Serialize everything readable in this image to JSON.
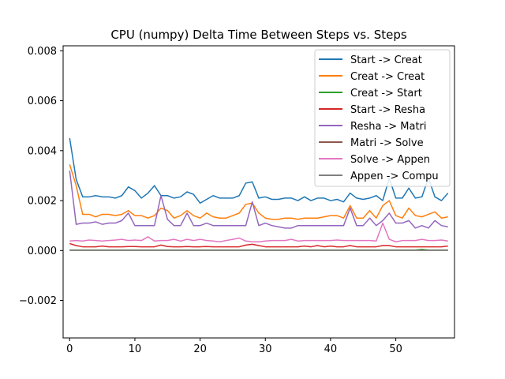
{
  "chart_data": {
    "type": "line",
    "title": "CPU (numpy) Delta Time Between Steps vs. Steps",
    "xlabel": "",
    "ylabel": "",
    "xlim": [
      -1,
      59
    ],
    "ylim": [
      -0.0035,
      0.0082
    ],
    "xticks": [
      0,
      10,
      20,
      30,
      40,
      50
    ],
    "yticks": [
      -0.002,
      0.0,
      0.002,
      0.004,
      0.006,
      0.008
    ],
    "ytick_labels": [
      "−0.002",
      "0.000",
      "0.002",
      "0.004",
      "0.006",
      "0.008"
    ],
    "grid": false,
    "legend_position": "top-right",
    "series": [
      {
        "name": "Start -> Creat",
        "color": "#1f77b4",
        "values": [
          0.0045,
          0.00285,
          0.00215,
          0.00215,
          0.0022,
          0.00215,
          0.00215,
          0.0021,
          0.0022,
          0.00255,
          0.0024,
          0.0021,
          0.0023,
          0.0026,
          0.0022,
          0.0022,
          0.0021,
          0.00215,
          0.00235,
          0.00225,
          0.0019,
          0.00205,
          0.0022,
          0.0021,
          0.0021,
          0.0021,
          0.0022,
          0.0027,
          0.00275,
          0.0021,
          0.00215,
          0.00205,
          0.00205,
          0.0021,
          0.0021,
          0.002,
          0.00215,
          0.002,
          0.0021,
          0.0021,
          0.002,
          0.00205,
          0.00195,
          0.0023,
          0.0021,
          0.00205,
          0.0021,
          0.0022,
          0.002,
          0.0029,
          0.0021,
          0.0021,
          0.0025,
          0.0021,
          0.00215,
          0.0029,
          0.00215,
          0.002,
          0.0023
        ]
      },
      {
        "name": "Creat -> Creat",
        "color": "#ff7f0e",
        "values": [
          0.00345,
          0.0026,
          0.00145,
          0.00145,
          0.00135,
          0.00145,
          0.00145,
          0.0014,
          0.00145,
          0.0016,
          0.0014,
          0.0014,
          0.0013,
          0.0014,
          0.0017,
          0.0016,
          0.0013,
          0.0014,
          0.0016,
          0.0014,
          0.0013,
          0.0015,
          0.00135,
          0.0013,
          0.0013,
          0.0014,
          0.0015,
          0.00185,
          0.0019,
          0.0015,
          0.0013,
          0.00125,
          0.00125,
          0.0013,
          0.0013,
          0.00125,
          0.0013,
          0.0013,
          0.0013,
          0.00135,
          0.0014,
          0.0014,
          0.0013,
          0.0018,
          0.0013,
          0.0013,
          0.0016,
          0.0013,
          0.0018,
          0.002,
          0.0014,
          0.0013,
          0.0017,
          0.0014,
          0.00135,
          0.00145,
          0.00155,
          0.0013,
          0.00135
        ]
      },
      {
        "name": "Creat -> Start",
        "color": "#2ca02c",
        "values": [
          2e-05,
          2e-05,
          2e-05,
          2e-05,
          2e-05,
          2e-05,
          2e-05,
          2e-05,
          2e-05,
          2e-05,
          2e-05,
          2e-05,
          2e-05,
          2e-05,
          2e-05,
          2e-05,
          2e-05,
          2e-05,
          2e-05,
          2e-05,
          2e-05,
          2e-05,
          2e-05,
          2e-05,
          2e-05,
          2e-05,
          2e-05,
          2e-05,
          2e-05,
          2e-05,
          2e-05,
          2e-05,
          2e-05,
          2e-05,
          2e-05,
          2e-05,
          2e-05,
          2e-05,
          2e-05,
          2e-05,
          2e-05,
          2e-05,
          2e-05,
          2e-05,
          2e-05,
          2e-05,
          2e-05,
          2e-05,
          2e-05,
          2e-05,
          2e-05,
          2e-05,
          2e-05,
          2e-05,
          5e-05,
          2e-05,
          2e-05,
          2e-05,
          2e-05
        ]
      },
      {
        "name": "Start -> Resha",
        "color": "#d62728",
        "values": [
          0.00028,
          0.0002,
          0.00015,
          0.00015,
          0.00015,
          0.00018,
          0.00015,
          0.00015,
          0.00015,
          0.00016,
          0.00016,
          0.00015,
          0.00015,
          0.00015,
          0.00022,
          0.00016,
          0.00015,
          0.00015,
          0.00016,
          0.00015,
          0.00015,
          0.00016,
          0.00015,
          0.00015,
          0.00015,
          0.00015,
          0.00015,
          0.00022,
          0.00025,
          0.0002,
          0.00015,
          0.00015,
          0.00015,
          0.00015,
          0.00015,
          0.00015,
          0.00018,
          0.00015,
          0.0002,
          0.00015,
          0.00018,
          0.00015,
          0.00015,
          0.0002,
          0.00015,
          0.00015,
          0.00015,
          0.00015,
          0.0002,
          0.0002,
          0.00015,
          0.00015,
          0.00015,
          0.00015,
          0.00015,
          0.00015,
          0.00015,
          0.00015,
          0.00018
        ]
      },
      {
        "name": "Resha -> Matri",
        "color": "#9467bd",
        "values": [
          0.0032,
          0.00105,
          0.0011,
          0.0011,
          0.00115,
          0.00105,
          0.0011,
          0.0011,
          0.0012,
          0.0015,
          0.001,
          0.001,
          0.001,
          0.001,
          0.0022,
          0.00125,
          0.001,
          0.001,
          0.0015,
          0.001,
          0.001,
          0.0011,
          0.001,
          0.001,
          0.001,
          0.001,
          0.001,
          0.001,
          0.00195,
          0.001,
          0.0011,
          0.001,
          0.00095,
          0.0009,
          0.0009,
          0.001,
          0.001,
          0.001,
          0.001,
          0.001,
          0.001,
          0.001,
          0.001,
          0.0017,
          0.001,
          0.001,
          0.0013,
          0.001,
          0.0012,
          0.0015,
          0.0011,
          0.0011,
          0.0012,
          0.0009,
          0.001,
          0.0009,
          0.0012,
          0.001,
          0.00095
        ]
      },
      {
        "name": "Matri -> Solve",
        "color": "#8c564b",
        "values": [
          1e-05,
          1e-05,
          1e-05,
          1e-05,
          1e-05,
          1e-05,
          1e-05,
          1e-05,
          1e-05,
          1e-05,
          1e-05,
          1e-05,
          1e-05,
          1e-05,
          1e-05,
          1e-05,
          1e-05,
          1e-05,
          1e-05,
          1e-05,
          1e-05,
          1e-05,
          1e-05,
          1e-05,
          1e-05,
          1e-05,
          1e-05,
          1e-05,
          1e-05,
          1e-05,
          1e-05,
          1e-05,
          1e-05,
          1e-05,
          1e-05,
          1e-05,
          1e-05,
          1e-05,
          1e-05,
          1e-05,
          1e-05,
          1e-05,
          1e-05,
          1e-05,
          1e-05,
          1e-05,
          1e-05,
          1e-05,
          1e-05,
          1e-05,
          1e-05,
          1e-05,
          1e-05,
          1e-05,
          1e-05,
          1e-05,
          1e-05,
          1e-05,
          1e-05
        ]
      },
      {
        "name": "Solve -> Appen",
        "color": "#e377c2",
        "values": [
          0.00038,
          0.0004,
          0.00038,
          0.00042,
          0.0004,
          0.00038,
          0.0004,
          0.00042,
          0.00045,
          0.0004,
          0.00042,
          0.0004,
          0.00055,
          0.00038,
          0.0004,
          0.0004,
          0.00045,
          0.00038,
          0.00045,
          0.0004,
          0.00045,
          0.0004,
          0.00038,
          0.00035,
          0.0004,
          0.00045,
          0.0005,
          0.00038,
          0.00035,
          0.00035,
          0.00038,
          0.0004,
          0.0004,
          0.0004,
          0.00045,
          0.00038,
          0.0004,
          0.0004,
          0.0004,
          0.0004,
          0.0004,
          0.00042,
          0.0004,
          0.0004,
          0.0004,
          0.0004,
          0.0004,
          0.00038,
          0.0011,
          0.00045,
          0.00035,
          0.0004,
          0.0004,
          0.0004,
          0.00045,
          0.0004,
          0.0004,
          0.00042,
          0.00038
        ]
      },
      {
        "name": "Appen -> Compu",
        "color": "#7f7f7f",
        "values": [
          1e-05,
          1e-05,
          1e-05,
          1e-05,
          1e-05,
          1e-05,
          1e-05,
          1e-05,
          1e-05,
          1e-05,
          1e-05,
          1e-05,
          1e-05,
          1e-05,
          1e-05,
          1e-05,
          1e-05,
          1e-05,
          1e-05,
          1e-05,
          1e-05,
          1e-05,
          1e-05,
          1e-05,
          1e-05,
          1e-05,
          1e-05,
          1e-05,
          1e-05,
          1e-05,
          1e-05,
          1e-05,
          1e-05,
          1e-05,
          1e-05,
          1e-05,
          1e-05,
          1e-05,
          1e-05,
          1e-05,
          1e-05,
          1e-05,
          1e-05,
          1e-05,
          1e-05,
          1e-05,
          1e-05,
          1e-05,
          1e-05,
          1e-05,
          1e-05,
          1e-05,
          1e-05,
          1e-05,
          1e-05,
          1e-05,
          1e-05,
          1e-05,
          1e-05
        ]
      }
    ]
  }
}
